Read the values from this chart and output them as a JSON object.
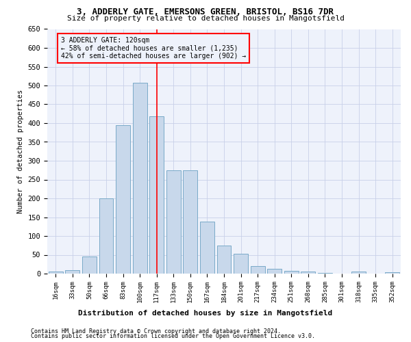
{
  "title_line1": "3, ADDERLY GATE, EMERSONS GREEN, BRISTOL, BS16 7DR",
  "title_line2": "Size of property relative to detached houses in Mangotsfield",
  "xlabel": "Distribution of detached houses by size in Mangotsfield",
  "ylabel": "Number of detached properties",
  "footnote1": "Contains HM Land Registry data © Crown copyright and database right 2024.",
  "footnote2": "Contains public sector information licensed under the Open Government Licence v3.0.",
  "bar_labels": [
    "16sqm",
    "33sqm",
    "50sqm",
    "66sqm",
    "83sqm",
    "100sqm",
    "117sqm",
    "133sqm",
    "150sqm",
    "167sqm",
    "184sqm",
    "201sqm",
    "217sqm",
    "234sqm",
    "251sqm",
    "268sqm",
    "285sqm",
    "301sqm",
    "318sqm",
    "335sqm",
    "352sqm"
  ],
  "bar_values": [
    5,
    10,
    45,
    200,
    395,
    507,
    418,
    275,
    275,
    138,
    75,
    52,
    20,
    12,
    7,
    5,
    2,
    0,
    5,
    0,
    3
  ],
  "bar_color": "#c8d8eb",
  "bar_edge_color": "#7aaac8",
  "vline_x": 6.0,
  "vline_color": "red",
  "annotation_title": "3 ADDERLY GATE: 120sqm",
  "annotation_line1": "← 58% of detached houses are smaller (1,235)",
  "annotation_line2": "42% of semi-detached houses are larger (902) →",
  "annotation_box_color": "red",
  "ylim": [
    0,
    650
  ],
  "yticks": [
    0,
    50,
    100,
    150,
    200,
    250,
    300,
    350,
    400,
    450,
    500,
    550,
    600,
    650
  ],
  "bg_color": "#eef2fb",
  "grid_color": "#c8d0e8",
  "ax_bg_color": "#eef2fb"
}
